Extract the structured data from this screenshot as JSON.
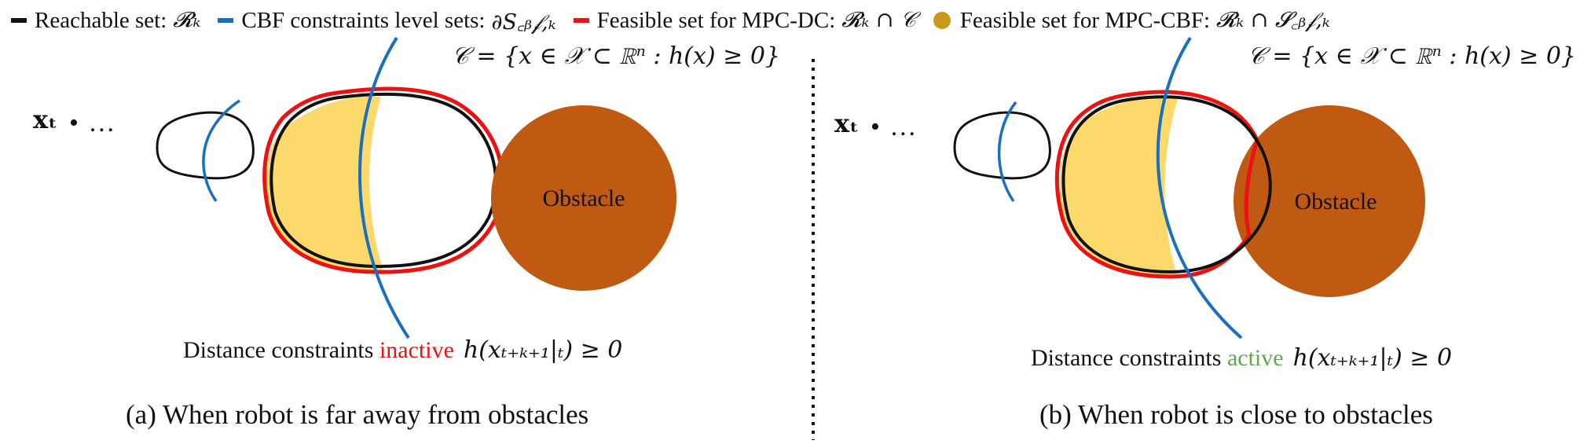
{
  "legend": [
    {
      "label": "Reachable set:",
      "math": "𝓡ₖ",
      "color": "#111111",
      "kind": "line"
    },
    {
      "label": "CBF constraints level sets:",
      "math": "∂S꜀ᵦ𝒻,ₖ",
      "color": "#1a6fbf",
      "kind": "line"
    },
    {
      "label": "Feasible set for MPC-DC:",
      "math": "𝓡ₖ ∩ 𝒞",
      "color": "#ee1111",
      "kind": "line"
    },
    {
      "label": "Feasible set for MPC-CBF:",
      "math": "𝓡ₖ ∩ 𝓢꜀ᵦ𝒻,ₖ",
      "color": "#c99a1a",
      "kind": "dot"
    }
  ],
  "colors": {
    "reachable": "#111111",
    "cbf": "#1a6fbf",
    "mpc_dc": "#ee1111",
    "mpc_cbf_fill": "#fcd96b",
    "obstacle": "#c05a12"
  },
  "panels": [
    {
      "set_def": "𝒞 = {x ∈ 𝒳 ⊂ ℝⁿ : h(x) ≥ 0}",
      "state_label": "xₜ",
      "ellipsis": "• …",
      "obstacle_label": "Obstacle",
      "note_prefix": "Distance constraints ",
      "status": "inactive",
      "status_color": "#ee1111",
      "note_math": "h(xₜ₊ₖ₊₁|ₜ) ≥ 0",
      "caption": "(a) When robot is far away from obstacles"
    },
    {
      "set_def": "𝒞 = {x ∈ 𝒳 ⊂ ℝⁿ : h(x) ≥ 0}",
      "state_label": "xₜ",
      "ellipsis": "• …",
      "obstacle_label": "Obstacle",
      "note_prefix": "Distance constraints ",
      "status": "active",
      "status_color": "#5fa84a",
      "note_math": "h(xₜ₊ₖ₊₁|ₜ) ≥ 0",
      "caption": "(b) When robot is close to obstacles"
    }
  ]
}
